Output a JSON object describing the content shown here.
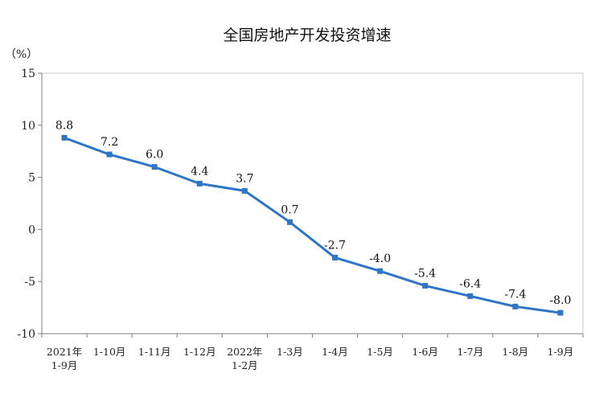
{
  "chart_data": {
    "type": "line",
    "title": "全国房地产开发投资增速",
    "unit_label": "（%）",
    "xlabel": "",
    "ylabel": "",
    "ylim": [
      -10,
      15
    ],
    "yticks": [
      "15",
      "10",
      "5",
      "0",
      "-5",
      "-10"
    ],
    "categories": [
      [
        "2021年",
        "1-9月"
      ],
      [
        "1-10月"
      ],
      [
        "1-11月"
      ],
      [
        "1-12月"
      ],
      [
        "2022年",
        "1-2月"
      ],
      [
        "1-3月"
      ],
      [
        "1-4月"
      ],
      [
        "1-5月"
      ],
      [
        "1-6月"
      ],
      [
        "1-7月"
      ],
      [
        "1-8月"
      ],
      [
        "1-9月"
      ]
    ],
    "values": [
      8.8,
      7.2,
      6.0,
      4.4,
      3.7,
      0.7,
      -2.7,
      -4.0,
      -5.4,
      -6.4,
      -7.4,
      -8.0
    ],
    "data_labels": [
      "8.8",
      "7.2",
      "6.0",
      "4.4",
      "3.7",
      "0.7",
      "-2.7",
      "-4.0",
      "-5.4",
      "-6.4",
      "-7.4",
      "-8.0"
    ],
    "line_color": "#2e75c7",
    "axis_color": "#7f7f7f",
    "grid": false,
    "legend": "none"
  }
}
